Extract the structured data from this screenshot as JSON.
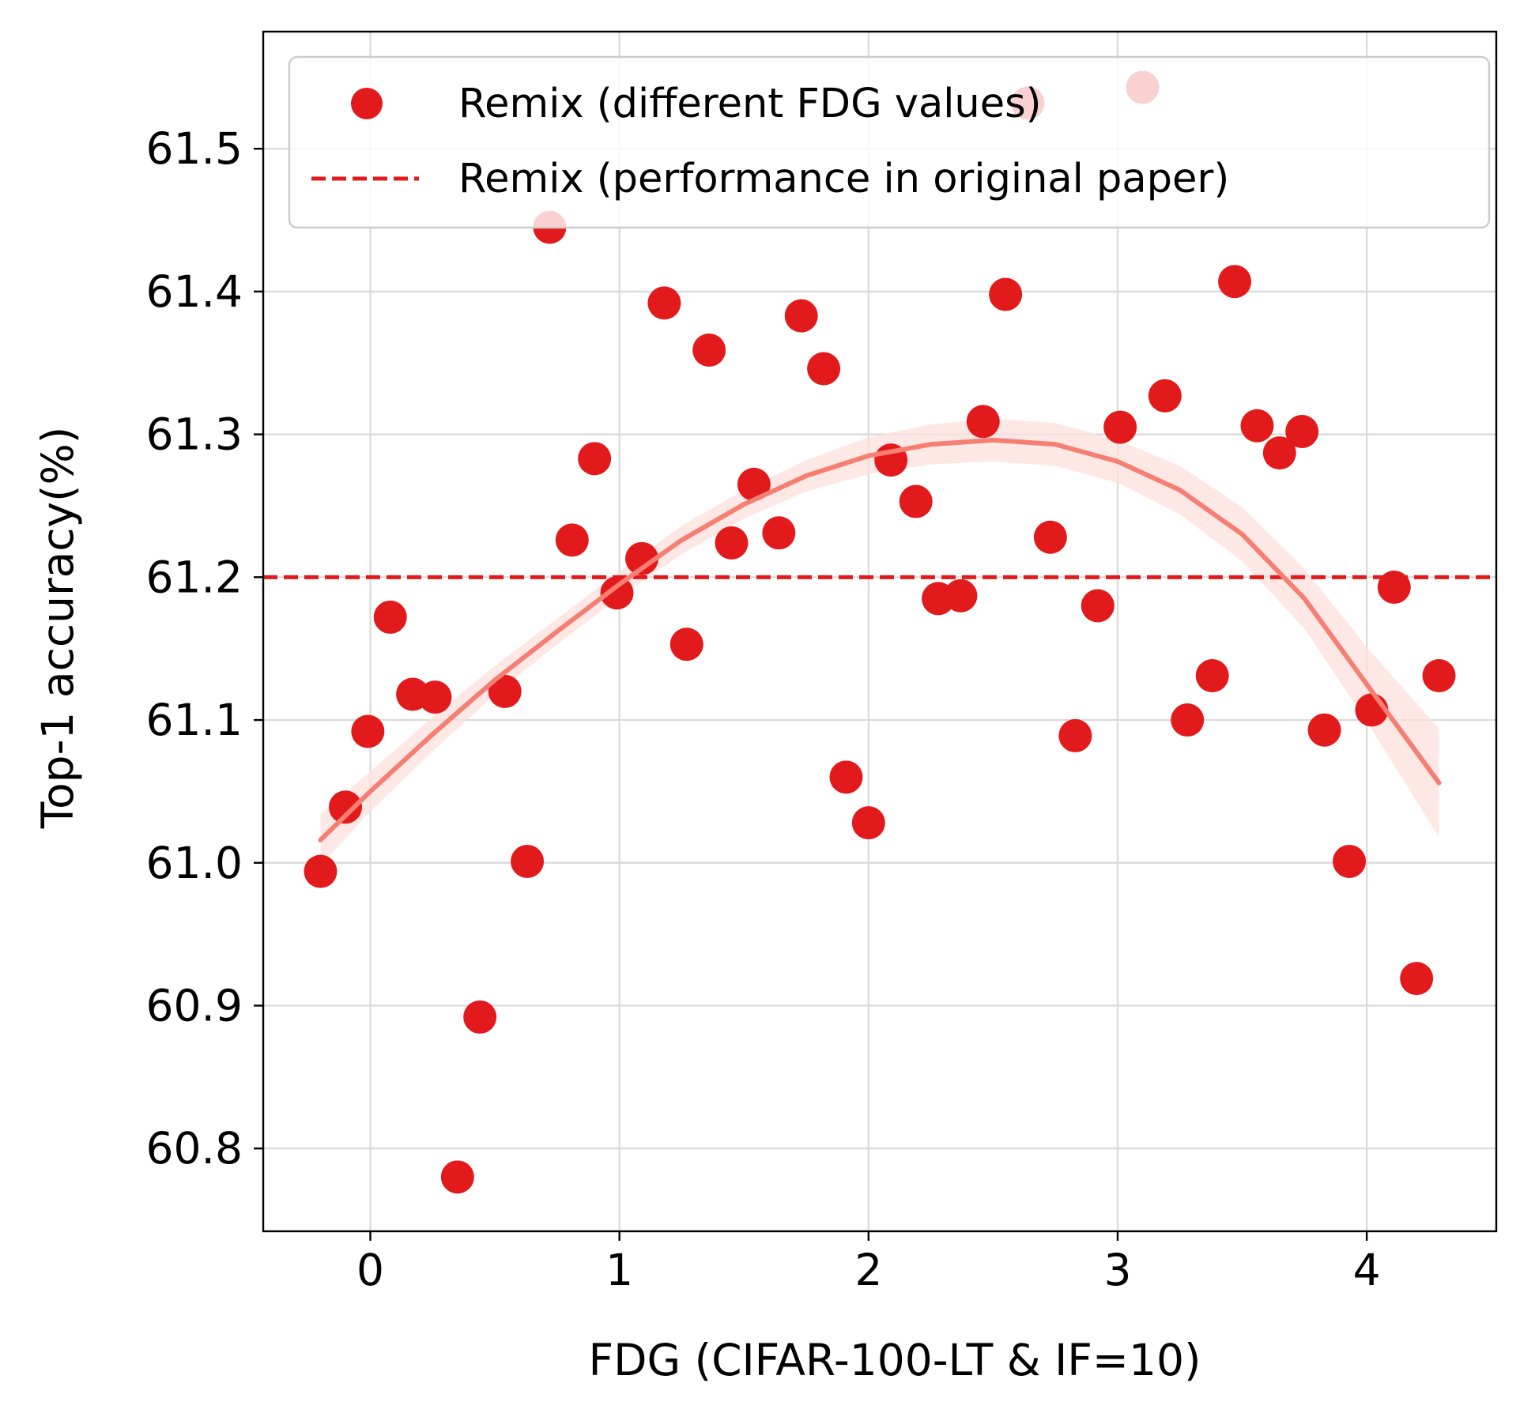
{
  "chart_data": {
    "type": "scatter",
    "xlabel": "FDG (CIFAR-100-LT & IF=10)",
    "ylabel": "Top-1 accuracy(%)",
    "xlim": [
      -0.43,
      4.52
    ],
    "ylim": [
      60.742,
      61.582
    ],
    "xticks": [
      0,
      1,
      2,
      3,
      4
    ],
    "xtick_labels": [
      "0",
      "1",
      "2",
      "3",
      "4"
    ],
    "yticks": [
      60.8,
      60.9,
      61.0,
      61.1,
      61.2,
      61.3,
      61.4,
      61.5
    ],
    "ytick_labels": [
      "60.8",
      "60.9",
      "61.0",
      "61.1",
      "61.2",
      "61.3",
      "61.4",
      "61.5"
    ],
    "grid": true,
    "legend_position": "upper-right",
    "colors": {
      "points": "#e31a1c",
      "reference_line": "#e31a1c",
      "fit_line": "#f47f72",
      "fit_band": "#fde0dc",
      "grid": "#d9d9d9",
      "axes": "#000000"
    },
    "series": [
      {
        "name": "Remix (different FDG values)",
        "kind": "scatter",
        "x": [
          -0.2,
          -0.1,
          -0.01,
          0.08,
          0.17,
          0.26,
          0.35,
          0.44,
          0.54,
          0.63,
          0.72,
          0.81,
          0.9,
          0.99,
          1.09,
          1.18,
          1.27,
          1.36,
          1.45,
          1.54,
          1.64,
          1.73,
          1.82,
          1.91,
          2.0,
          2.09,
          2.19,
          2.28,
          2.37,
          2.46,
          2.55,
          2.64,
          2.73,
          2.83,
          2.92,
          3.01,
          3.1,
          3.19,
          3.28,
          3.38,
          3.47,
          3.56,
          3.65,
          3.74,
          3.83,
          3.93,
          4.02,
          4.11,
          4.2,
          4.29
        ],
        "y": [
          60.994,
          61.039,
          61.092,
          61.172,
          61.118,
          61.116,
          60.78,
          60.892,
          61.12,
          61.001,
          61.445,
          61.226,
          61.283,
          61.189,
          61.213,
          61.392,
          61.153,
          61.359,
          61.224,
          61.265,
          61.231,
          61.383,
          61.346,
          61.06,
          61.028,
          61.282,
          61.253,
          61.185,
          61.187,
          61.309,
          61.398,
          61.532,
          61.228,
          61.089,
          61.18,
          61.305,
          61.543,
          61.327,
          61.1,
          61.131,
          61.407,
          61.306,
          61.287,
          61.302,
          61.093,
          61.001,
          61.107,
          61.193,
          60.919,
          61.131
        ]
      },
      {
        "name": "Remix (performance in original paper)",
        "kind": "hline",
        "y": 61.2
      },
      {
        "kind": "fit",
        "x": [
          -0.2,
          0.0,
          0.25,
          0.5,
          0.75,
          1.0,
          1.25,
          1.5,
          1.75,
          2.0,
          2.25,
          2.5,
          2.75,
          3.0,
          3.25,
          3.5,
          3.75,
          4.0,
          4.29
        ],
        "y": [
          61.016,
          61.05,
          61.09,
          61.128,
          61.162,
          61.195,
          61.226,
          61.251,
          61.271,
          61.285,
          61.293,
          61.296,
          61.293,
          61.281,
          61.261,
          61.23,
          61.185,
          61.125,
          61.056
        ],
        "band_lower": [
          60.998,
          61.036,
          61.078,
          61.118,
          61.153,
          61.186,
          61.216,
          61.241,
          61.26,
          61.272,
          61.279,
          61.281,
          61.278,
          61.266,
          61.244,
          61.211,
          61.164,
          61.099,
          61.018
        ],
        "band_upper": [
          61.034,
          61.064,
          61.102,
          61.138,
          61.171,
          61.204,
          61.236,
          61.261,
          61.282,
          61.298,
          61.307,
          61.311,
          61.308,
          61.296,
          61.278,
          61.249,
          61.206,
          61.151,
          61.094
        ]
      }
    ]
  }
}
